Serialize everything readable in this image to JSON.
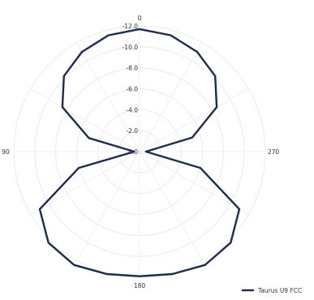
{
  "chart_data": {
    "type": "polar-line",
    "title": "",
    "angular_axis": {
      "direction": "counterclockwise",
      "zero_at": "top",
      "labels": [
        "0",
        "90",
        "180",
        "270"
      ],
      "label_angles": [
        0,
        90,
        180,
        270
      ]
    },
    "radial_axis": {
      "range": [
        0,
        -12
      ],
      "ticks": [
        0,
        -2,
        -4,
        -6,
        -8,
        -10,
        -12
      ],
      "tick_labels": [
        "0.0",
        "-2.0",
        "-4.0",
        "-6.0",
        "-8.0",
        "-10.0",
        "-12.0"
      ]
    },
    "grid": true,
    "legend": {
      "position": "bottom-right"
    },
    "series": [
      {
        "name": "Taurus U9 FCC",
        "color": "#1d2b4f",
        "theta": [
          0,
          15,
          30,
          45,
          60,
          75,
          90,
          105,
          120,
          135,
          150,
          165,
          180,
          195,
          210,
          225,
          240,
          255,
          270,
          285,
          300,
          315,
          330,
          345,
          360
        ],
        "r": [
          -11.7,
          -11.5,
          -11.0,
          -10.2,
          -8.5,
          -5.0,
          -0.5,
          -6.0,
          -11.0,
          -12.3,
          -12.5,
          -12.1,
          -11.9,
          -12.1,
          -12.5,
          -12.3,
          -11.0,
          -6.0,
          -0.6,
          -5.2,
          -8.5,
          -10.2,
          -11.0,
          -11.5,
          -11.7
        ]
      }
    ]
  }
}
